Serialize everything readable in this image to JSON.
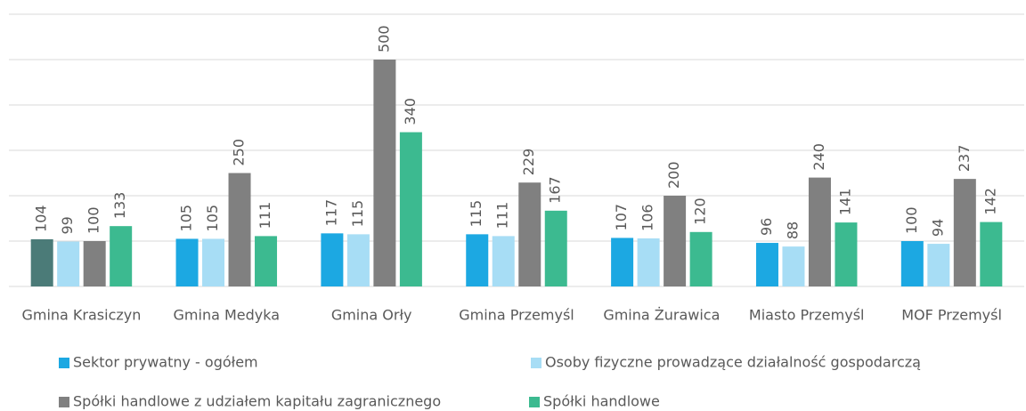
{
  "chart_data": {
    "type": "bar",
    "categories": [
      "Gmina Krasiczyn",
      "Gmina Medyka",
      "Gmina Orły",
      "Gmina Przemyśl",
      "Gmina Żurawica",
      "Miasto Przemyśl",
      "MOF Przemyśl"
    ],
    "series": [
      {
        "name": "Sektor prywatny - ogółem",
        "color": "#1ca8e2",
        "colors": [
          "#4b7b78",
          "#1ca8e2",
          "#1ca8e2",
          "#1ca8e2",
          "#1ca8e2",
          "#1ca8e2",
          "#1ca8e2"
        ],
        "values": [
          104,
          105,
          117,
          115,
          107,
          96,
          100
        ]
      },
      {
        "name": "Osoby fizyczne prowadzące działalność gospodarczą",
        "color": "#a7ddf5",
        "values": [
          99,
          105,
          115,
          111,
          106,
          88,
          94
        ]
      },
      {
        "name": "Spółki handlowe z udziałem kapitału zagranicznego",
        "color": "#808080",
        "values": [
          100,
          250,
          500,
          229,
          200,
          240,
          237
        ]
      },
      {
        "name": "Spółki handlowe",
        "color": "#3cba90",
        "values": [
          133,
          111,
          340,
          167,
          120,
          141,
          142
        ]
      }
    ],
    "ylim": [
      0,
      600
    ],
    "yticks": [
      0,
      100,
      200,
      300,
      400,
      500,
      600
    ],
    "grid": true,
    "legend": "bottom"
  }
}
